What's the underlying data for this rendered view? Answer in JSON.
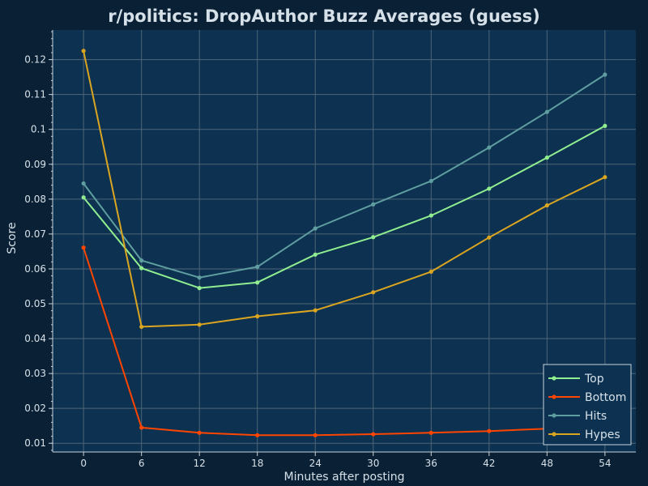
{
  "colors": {
    "background": "#0a2035",
    "plot_background": "#0d3150",
    "grid": "#4e6677",
    "axis": "#c7d3dc",
    "text": "#d5e0e8"
  },
  "chart_data": {
    "type": "line",
    "title": "r/politics: DropAuthor Buzz Averages (guess)",
    "xlabel": "Minutes after posting",
    "ylabel": "Score",
    "x": [
      0,
      6,
      12,
      18,
      24,
      30,
      36,
      42,
      48,
      54
    ],
    "xlim": [
      -3.2,
      57.2
    ],
    "ylim": [
      0.0075,
      0.1285
    ],
    "xticks": [
      0,
      6,
      12,
      18,
      24,
      30,
      36,
      42,
      48,
      54
    ],
    "xtick_labels": [
      "0",
      "6",
      "12",
      "18",
      "24",
      "30",
      "36",
      "42",
      "48",
      "54"
    ],
    "yticks": [
      0.01,
      0.02,
      0.03,
      0.04,
      0.05,
      0.06,
      0.07,
      0.08,
      0.09,
      0.1,
      0.11,
      0.12
    ],
    "ytick_labels": [
      "0.01",
      "0.02",
      "0.03",
      "0.04",
      "0.05",
      "0.06",
      "0.07",
      "0.08",
      "0.09",
      "0.1",
      "0.11",
      "0.12"
    ],
    "yminor_step": 0.002,
    "grid": true,
    "legend_position": "bottom-right",
    "series": [
      {
        "name": "Top",
        "color": "#90ee90",
        "values": [
          0.0805,
          0.0602,
          0.0545,
          0.0561,
          0.0641,
          0.0691,
          0.0753,
          0.083,
          0.0919,
          0.101
        ]
      },
      {
        "name": "Bottom",
        "color": "#ff4500",
        "values": [
          0.0661,
          0.0145,
          0.013,
          0.0123,
          0.0123,
          0.0126,
          0.013,
          0.0135,
          0.0142,
          0.0152
        ]
      },
      {
        "name": "Hits",
        "color": "#5f9ea0",
        "values": [
          0.0845,
          0.0624,
          0.0575,
          0.0606,
          0.0716,
          0.0785,
          0.0852,
          0.0948,
          0.105,
          0.1157
        ]
      },
      {
        "name": "Hypes",
        "color": "#daa520",
        "values": [
          0.1225,
          0.0434,
          0.044,
          0.0464,
          0.0481,
          0.0533,
          0.0592,
          0.069,
          0.0782,
          0.0863
        ]
      }
    ]
  }
}
